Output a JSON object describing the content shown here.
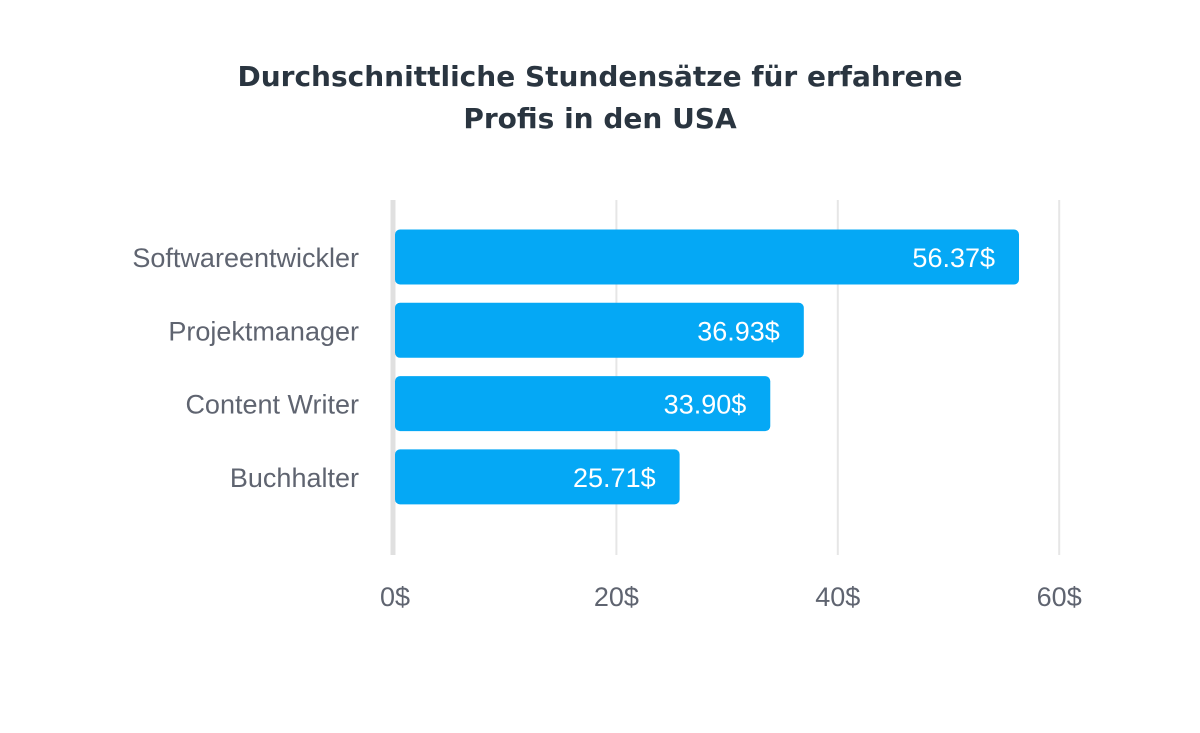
{
  "chart_data": {
    "type": "bar",
    "orientation": "horizontal",
    "title_lines": [
      "Durchschnittliche Stundensätze für erfahrene",
      "Profis in den USA"
    ],
    "categories": [
      "Softwareentwickler",
      "Projektmanager",
      "Content Writer",
      "Buchhalter"
    ],
    "values": [
      56.37,
      36.93,
      33.9,
      25.71
    ],
    "value_labels": [
      "56.37$",
      "36.93$",
      "33.90$",
      "25.71$"
    ],
    "xlim": [
      0,
      60
    ],
    "x_ticks": [
      0,
      20,
      40,
      60
    ],
    "x_tick_labels": [
      "0$",
      "20$",
      "40$",
      "60$"
    ],
    "grid": true,
    "bar_color": "#05a8f5",
    "grid_color": "#e6e6e6",
    "axis_color": "#e0e0e0"
  }
}
